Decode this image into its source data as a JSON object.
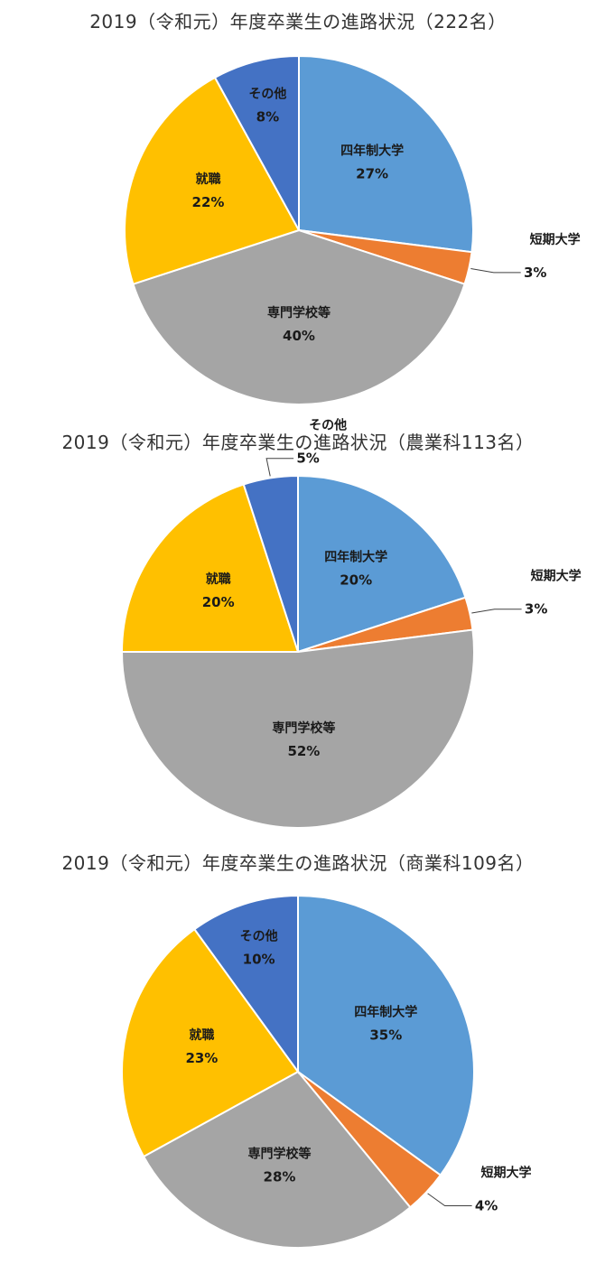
{
  "chart_data": [
    {
      "type": "pie",
      "title": "2019（令和元）年度卒業生の進路状況（222名）",
      "categories": [
        "四年制大学",
        "短期大学",
        "専門学校等",
        "就職",
        "その他"
      ],
      "values": [
        27,
        3,
        40,
        22,
        8
      ],
      "value_labels": [
        "27%",
        "3%",
        "40%",
        "22%",
        "8%"
      ],
      "colors": [
        "#5b9bd5",
        "#ed7d31",
        "#a5a5a5",
        "#ffc000",
        "#4472c4"
      ],
      "legend": "none"
    },
    {
      "type": "pie",
      "title": "2019（令和元）年度卒業生の進路状況（農業科113名）",
      "categories": [
        "四年制大学",
        "短期大学",
        "専門学校等",
        "就職",
        "その他"
      ],
      "values": [
        20,
        3,
        52,
        20,
        5
      ],
      "value_labels": [
        "20%",
        "3%",
        "52%",
        "20%",
        "5%"
      ],
      "colors": [
        "#5b9bd5",
        "#ed7d31",
        "#a5a5a5",
        "#ffc000",
        "#4472c4"
      ],
      "legend": "none"
    },
    {
      "type": "pie",
      "title": "2019（令和元）年度卒業生の進路状況（商業科109名）",
      "categories": [
        "四年制大学",
        "短期大学",
        "専門学校等",
        "就職",
        "その他"
      ],
      "values": [
        35,
        4,
        28,
        23,
        10
      ],
      "value_labels": [
        "35%",
        "4%",
        "28%",
        "23%",
        "10%"
      ],
      "colors": [
        "#5b9bd5",
        "#ed7d31",
        "#a5a5a5",
        "#ffc000",
        "#4472c4"
      ],
      "legend": "none"
    }
  ]
}
